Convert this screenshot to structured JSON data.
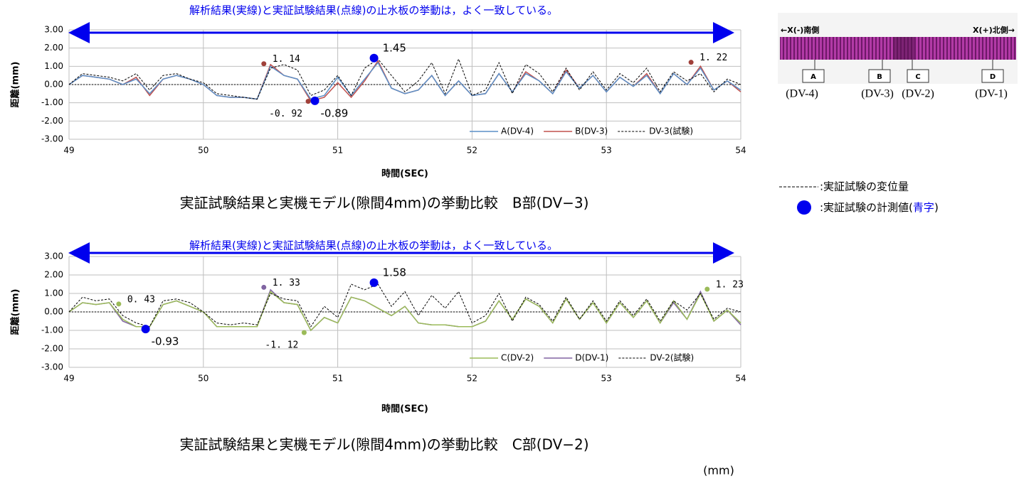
{
  "chart_data": [
    {
      "type": "line",
      "title": "解析結果(実線)と実証試験結果(点線)の止水板の挙動は，よく一致している。",
      "caption": "実証試験結果と実機モデル(隙間4mm)の挙動比較　B部(DV−3)",
      "x_label": "時間(SEC)",
      "y_label": "距離(mm)",
      "xlim": [
        49,
        54
      ],
      "xticks": [
        49,
        50,
        51,
        52,
        53,
        54
      ],
      "ylim": [
        -3,
        3
      ],
      "yticks": [
        {
          "value": 3,
          "label": "3.00"
        },
        {
          "value": 2,
          "label": "2.00"
        },
        {
          "value": 1,
          "label": "1.00"
        },
        {
          "value": 0,
          "label": "0.00"
        },
        {
          "value": -1,
          "label": "-1.00"
        },
        {
          "value": -2,
          "label": "-2.00"
        },
        {
          "value": -3,
          "label": "-3.00"
        }
      ],
      "grid": true,
      "x": [
        49.0,
        49.1,
        49.2,
        49.3,
        49.4,
        49.5,
        49.6,
        49.7,
        49.8,
        49.9,
        50.0,
        50.1,
        50.2,
        50.3,
        50.4,
        50.5,
        50.6,
        50.7,
        50.8,
        50.9,
        51.0,
        51.1,
        51.2,
        51.3,
        51.4,
        51.5,
        51.6,
        51.7,
        51.8,
        51.9,
        52.0,
        52.1,
        52.2,
        52.3,
        52.4,
        52.5,
        52.6,
        52.7,
        52.8,
        52.9,
        53.0,
        53.1,
        53.2,
        53.3,
        53.4,
        53.5,
        53.6,
        53.7,
        53.8,
        53.9,
        54.0
      ],
      "series": [
        {
          "name": "A(DV-4)",
          "color": "#5b8fc7",
          "values": [
            0,
            0.5,
            0.4,
            0.3,
            0,
            0.3,
            -0.5,
            0.3,
            0.5,
            0.3,
            0,
            -0.6,
            -0.7,
            -0.7,
            -0.8,
            1.0,
            0.5,
            0.3,
            -0.8,
            -0.6,
            0.4,
            -0.6,
            0.3,
            1.2,
            -0.2,
            -0.5,
            -0.3,
            0.5,
            -0.6,
            0.2,
            -0.6,
            -0.5,
            0.6,
            -0.4,
            0.6,
            0.2,
            -0.5,
            0.7,
            -0.2,
            0.5,
            -0.4,
            0.4,
            -0.1,
            0.5,
            -0.5,
            0.6,
            0,
            0.9,
            -0.3,
            0.2,
            -0.3
          ]
        },
        {
          "name": "B(DV-3)",
          "color": "#c0504d",
          "values": [
            0,
            0.5,
            0.4,
            0.3,
            0,
            0.4,
            -0.6,
            0.3,
            0.5,
            0.3,
            0,
            -0.6,
            -0.7,
            -0.7,
            -0.8,
            1.1,
            0.5,
            0.3,
            -0.9,
            -0.7,
            0.1,
            -0.7,
            0.2,
            1.3,
            -0.2,
            -0.5,
            -0.3,
            0.5,
            -0.6,
            0.2,
            -0.6,
            -0.5,
            0.6,
            -0.4,
            0.7,
            0.2,
            -0.5,
            0.8,
            -0.2,
            0.5,
            -0.4,
            0.4,
            -0.1,
            0.6,
            -0.5,
            0.6,
            0,
            1.0,
            -0.3,
            0.2,
            -0.4
          ]
        },
        {
          "name": "DV-3(試験)",
          "color": "#000000",
          "dashed": true,
          "values": [
            0,
            0.6,
            0.5,
            0.4,
            0.2,
            0.6,
            -0.3,
            0.5,
            0.6,
            0.3,
            0.1,
            -0.5,
            -0.6,
            -0.7,
            -0.8,
            0.9,
            1.1,
            0.8,
            -0.6,
            -0.3,
            0.5,
            -0.6,
            0.9,
            1.4,
            0.5,
            -0.4,
            0.2,
            1.2,
            -0.5,
            1.4,
            -0.6,
            -0.3,
            1.2,
            -0.5,
            1.1,
            0.6,
            -0.4,
            0.9,
            -0.3,
            0.7,
            -0.3,
            0.6,
            0.1,
            0.9,
            -0.4,
            0.7,
            0.2,
            0.6,
            -0.4,
            0.3,
            0
          ]
        }
      ],
      "points": [
        {
          "x": 50.45,
          "y": 1.14,
          "label": "1. 14",
          "color": "#a0403a"
        },
        {
          "x": 50.78,
          "y": -0.92,
          "label": "-0. 92",
          "color": "#a0403a"
        },
        {
          "x": 50.83,
          "y": -0.89,
          "label": "-0.89",
          "color": "#0000ee"
        },
        {
          "x": 51.27,
          "y": 1.45,
          "label": "1.45",
          "color": "#0000ee"
        },
        {
          "x": 53.63,
          "y": 1.22,
          "label": "1. 22",
          "color": "#a0403a"
        }
      ]
    },
    {
      "type": "line",
      "title": "解析結果(実線)と実証試験結果(点線)の止水板の挙動は，よく一致している。",
      "caption": "実証試験結果と実機モデル(隙間4mm)の挙動比較　C部(DV−2)",
      "x_label": "時間(SEC)",
      "y_label": "距離(mm)",
      "xlim": [
        49,
        54
      ],
      "xticks": [
        49,
        50,
        51,
        52,
        53,
        54
      ],
      "ylim": [
        -3,
        3
      ],
      "yticks": [
        {
          "value": 3,
          "label": "3.00"
        },
        {
          "value": 2,
          "label": "2.00"
        },
        {
          "value": 1,
          "label": "1.00"
        },
        {
          "value": 0,
          "label": "0.00"
        },
        {
          "value": -1,
          "label": "-1.00"
        },
        {
          "value": -2,
          "label": "-2.00"
        },
        {
          "value": -3,
          "label": "-3.00"
        }
      ],
      "grid": true,
      "x": [
        49.0,
        49.1,
        49.2,
        49.3,
        49.4,
        49.5,
        49.6,
        49.7,
        49.8,
        49.9,
        50.0,
        50.1,
        50.2,
        50.3,
        50.4,
        50.5,
        50.6,
        50.7,
        50.8,
        50.9,
        51.0,
        51.1,
        51.2,
        51.3,
        51.4,
        51.5,
        51.6,
        51.7,
        51.8,
        51.9,
        52.0,
        52.1,
        52.2,
        52.3,
        52.4,
        52.5,
        52.6,
        52.7,
        52.8,
        52.9,
        53.0,
        53.1,
        53.2,
        53.3,
        53.4,
        53.5,
        53.6,
        53.7,
        53.8,
        53.9,
        54.0
      ],
      "series": [
        {
          "name": "C(DV-2)",
          "color": "#9bbb59",
          "values": [
            0,
            0.5,
            0.4,
            0.5,
            -0.4,
            -0.8,
            -0.8,
            0.4,
            0.6,
            0.3,
            0,
            -0.8,
            -0.8,
            -0.8,
            -0.8,
            1.1,
            0.5,
            0.4,
            -1.0,
            -0.3,
            -0.6,
            0.8,
            0.6,
            0.2,
            -0.2,
            0.3,
            -0.6,
            -0.7,
            -0.7,
            -0.8,
            -0.8,
            -0.5,
            0.6,
            -0.4,
            0.7,
            0.3,
            -0.6,
            0.7,
            -0.4,
            0.5,
            -0.6,
            0.5,
            -0.3,
            0.6,
            -0.6,
            0.6,
            -0.4,
            1.0,
            -0.5,
            0.1,
            -0.6
          ]
        },
        {
          "name": "D(DV-1)",
          "color": "#8064a2",
          "values": [
            0,
            0.5,
            0.4,
            0.5,
            -0.5,
            -0.8,
            -0.8,
            0.4,
            0.6,
            0.3,
            0,
            -0.8,
            -0.8,
            -0.8,
            -0.8,
            1.2,
            0.5,
            0.4,
            -1.0,
            -0.3,
            -0.6,
            0.8,
            0.6,
            0.2,
            -0.2,
            0.3,
            -0.6,
            -0.7,
            -0.7,
            -0.8,
            -0.8,
            -0.5,
            0.6,
            -0.4,
            0.7,
            0.3,
            -0.6,
            0.7,
            -0.4,
            0.5,
            -0.6,
            0.5,
            -0.3,
            0.6,
            -0.6,
            0.5,
            -0.4,
            1.1,
            -0.5,
            0.1,
            -0.7
          ]
        },
        {
          "name": "DV-2(試験)",
          "color": "#000000",
          "dashed": true,
          "values": [
            0,
            0.8,
            0.6,
            0.7,
            -0.2,
            -0.6,
            -0.8,
            0.6,
            0.7,
            0.5,
            0,
            -0.6,
            -0.7,
            -0.6,
            -0.7,
            1.0,
            0.7,
            0.6,
            -0.8,
            0.3,
            -0.3,
            1.5,
            1.2,
            1.5,
            0.3,
            1.1,
            -0.2,
            0.9,
            0.2,
            1.1,
            -0.6,
            -0.2,
            1.0,
            -0.5,
            0.8,
            0.4,
            -0.5,
            0.8,
            -0.4,
            0.6,
            -0.5,
            0.6,
            -0.2,
            0.7,
            -0.5,
            0.6,
            0.1,
            1.0,
            -0.4,
            0.2,
            0
          ]
        }
      ],
      "points": [
        {
          "x": 49.37,
          "y": 0.43,
          "label": "0. 43",
          "color": "#9bbb59"
        },
        {
          "x": 49.57,
          "y": -0.93,
          "label": "-0.93",
          "color": "#0000ee"
        },
        {
          "x": 50.45,
          "y": 1.33,
          "label": "1. 33",
          "color": "#8064a2"
        },
        {
          "x": 50.75,
          "y": -1.12,
          "label": "-1. 12",
          "color": "#9bbb59"
        },
        {
          "x": 51.27,
          "y": 1.58,
          "label": "1.58",
          "color": "#0000ee"
        },
        {
          "x": 53.75,
          "y": 1.23,
          "label": "1. 23",
          "color": "#9bbb59"
        }
      ]
    }
  ],
  "diagram": {
    "left": "←X(-)南側",
    "right": "X(+)北側→",
    "boxes": [
      "A",
      "B",
      "C",
      "D"
    ],
    "sensors": [
      "(DV-4)",
      "(DV-3)",
      "(DV-2)",
      "(DV-1)"
    ]
  },
  "notes": {
    "dashed": ":実証試験の変位量",
    "dot": [
      ":実証試験の計測値(",
      "青字",
      ")"
    ]
  },
  "unit": "(mm)"
}
